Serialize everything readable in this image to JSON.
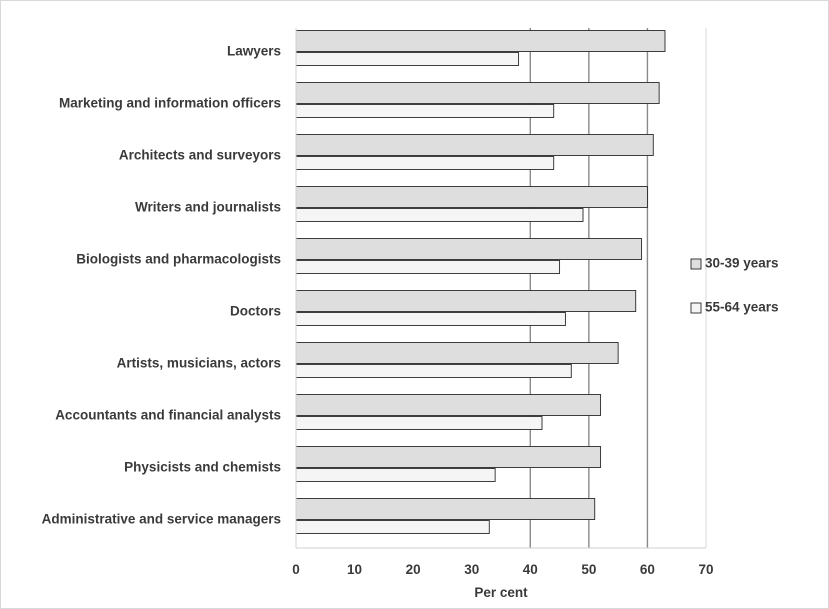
{
  "chart_data": {
    "type": "bar",
    "orientation": "horizontal",
    "categories": [
      "Lawyers",
      "Marketing and information officers",
      "Architects and surveyors",
      "Writers and journalists",
      "Biologists and pharmacologists",
      "Doctors",
      "Artists, musicians, actors",
      "Accountants and financial analysts",
      "Physicists and chemists",
      "Administrative and service managers"
    ],
    "series": [
      {
        "name": "30-39 years",
        "color": "#dedede",
        "values": [
          63,
          62,
          61,
          60,
          59,
          58,
          55,
          52,
          52,
          51
        ]
      },
      {
        "name": "55-64 years",
        "color": "#f5f5f5",
        "values": [
          38,
          44,
          44,
          49,
          45,
          46,
          47,
          42,
          34,
          33
        ]
      }
    ],
    "xlabel": "Per cent",
    "ylabel": "",
    "xlim": [
      0,
      70
    ],
    "xticks": [
      0,
      10,
      20,
      30,
      40,
      50,
      60,
      70
    ],
    "grid": "vertical lines at 40, 50, 60",
    "legend_position": "right"
  }
}
